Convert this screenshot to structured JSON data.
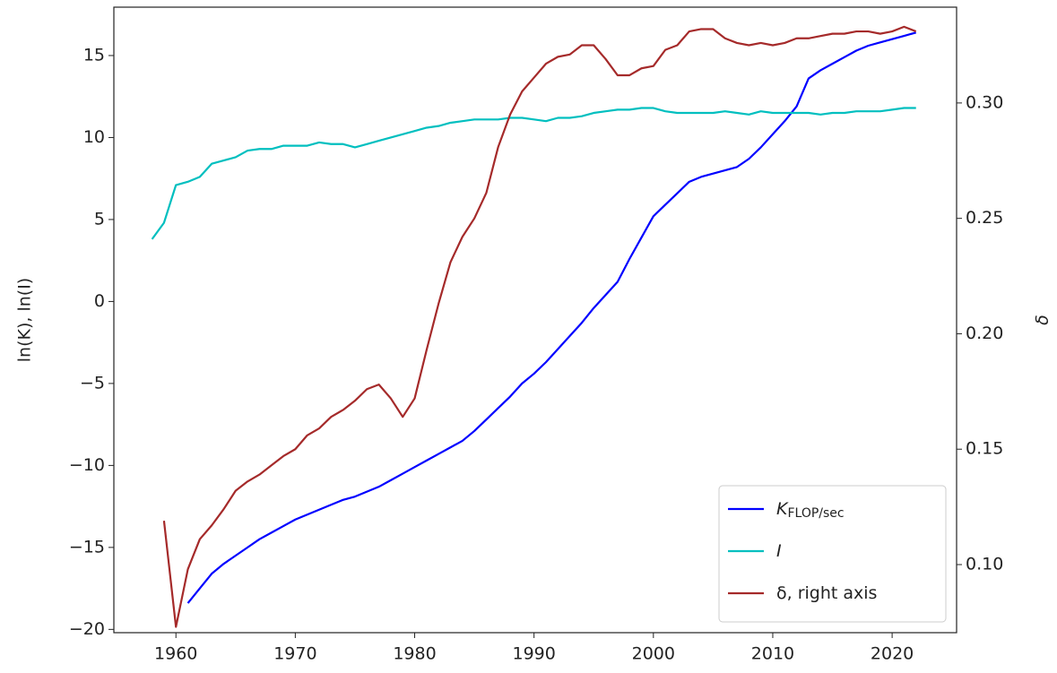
{
  "chart_data": {
    "type": "line",
    "ylabel": "ln(K), ln(I)",
    "y2label": "δ",
    "xlim": [
      1954.8,
      2025.4
    ],
    "ylim": [
      -20.2,
      17.95
    ],
    "y2lim": [
      0.0705,
      0.3415
    ],
    "xticks": [
      1960,
      1970,
      1980,
      1990,
      2000,
      2010,
      2020
    ],
    "yticks": [
      {
        "value": -20,
        "label": "−20"
      },
      {
        "value": -15,
        "label": "−15"
      },
      {
        "value": -10,
        "label": "−10"
      },
      {
        "value": -5,
        "label": "−5"
      },
      0,
      5,
      10,
      15
    ],
    "y2ticks": [
      {
        "value": 0.1,
        "label": "0.10"
      },
      {
        "value": 0.15,
        "label": "0.15"
      },
      {
        "value": 0.2,
        "label": "0.20"
      },
      {
        "value": 0.25,
        "label": "0.25"
      },
      {
        "value": 0.3,
        "label": "0.30"
      }
    ],
    "legend": "lower right",
    "series": [
      {
        "name": "K",
        "name_sub": "FLOP/sec",
        "color": "#0000ff",
        "x": [
          1961,
          1962,
          1963,
          1964,
          1965,
          1966,
          1967,
          1968,
          1969,
          1970,
          1971,
          1972,
          1973,
          1974,
          1975,
          1976,
          1977,
          1978,
          1979,
          1980,
          1981,
          1982,
          1983,
          1984,
          1985,
          1986,
          1987,
          1988,
          1989,
          1990,
          1991,
          1992,
          1993,
          1994,
          1995,
          1996,
          1997,
          1998,
          1999,
          2000,
          2001,
          2002,
          2003,
          2004,
          2005,
          2006,
          2007,
          2008,
          2009,
          2010,
          2011,
          2012,
          2013,
          2014,
          2015,
          2016,
          2017,
          2018,
          2019,
          2020,
          2021,
          2022
        ],
        "values": [
          -18.4,
          -17.5,
          -16.6,
          -16.0,
          -15.5,
          -15.0,
          -14.5,
          -14.1,
          -13.7,
          -13.3,
          -13.0,
          -12.7,
          -12.4,
          -12.1,
          -11.9,
          -11.6,
          -11.3,
          -10.9,
          -10.5,
          -10.1,
          -9.7,
          -9.3,
          -8.9,
          -8.5,
          -7.9,
          -7.2,
          -6.5,
          -5.8,
          -5.0,
          -4.4,
          -3.7,
          -2.9,
          -2.1,
          -1.3,
          -0.4,
          0.4,
          1.2,
          2.6,
          3.9,
          5.2,
          5.9,
          6.6,
          7.3,
          7.6,
          7.8,
          8.0,
          8.2,
          8.7,
          9.4,
          10.2,
          11.0,
          11.9,
          13.6,
          14.1,
          14.5,
          14.9,
          15.3,
          15.6,
          15.8,
          16.0,
          16.2,
          16.4
        ]
      },
      {
        "name": "I",
        "color": "#00bfbf",
        "x": [
          1958,
          1959,
          1960,
          1961,
          1962,
          1963,
          1964,
          1965,
          1966,
          1967,
          1968,
          1969,
          1970,
          1971,
          1972,
          1973,
          1974,
          1975,
          1976,
          1977,
          1978,
          1979,
          1980,
          1981,
          1982,
          1983,
          1984,
          1985,
          1986,
          1987,
          1988,
          1989,
          1990,
          1991,
          1992,
          1993,
          1994,
          1995,
          1996,
          1997,
          1998,
          1999,
          2000,
          2001,
          2002,
          2003,
          2004,
          2005,
          2006,
          2007,
          2008,
          2009,
          2010,
          2011,
          2012,
          2013,
          2014,
          2015,
          2016,
          2017,
          2018,
          2019,
          2020,
          2021,
          2022
        ],
        "values": [
          3.8,
          4.8,
          7.1,
          7.3,
          7.6,
          8.4,
          8.6,
          8.8,
          9.2,
          9.3,
          9.3,
          9.5,
          9.5,
          9.5,
          9.7,
          9.6,
          9.6,
          9.4,
          9.6,
          9.8,
          10.0,
          10.2,
          10.4,
          10.6,
          10.7,
          10.9,
          11.0,
          11.1,
          11.1,
          11.1,
          11.2,
          11.2,
          11.1,
          11.0,
          11.2,
          11.2,
          11.3,
          11.5,
          11.6,
          11.7,
          11.7,
          11.8,
          11.8,
          11.6,
          11.5,
          11.5,
          11.5,
          11.5,
          11.6,
          11.5,
          11.4,
          11.6,
          11.5,
          11.5,
          11.5,
          11.5,
          11.4,
          11.5,
          11.5,
          11.6,
          11.6,
          11.6,
          11.7,
          11.8,
          11.8
        ]
      },
      {
        "name": "δ, right axis",
        "color": "#a52a2a",
        "axis": "y2",
        "x": [
          1959,
          1960,
          1961,
          1962,
          1963,
          1964,
          1965,
          1966,
          1967,
          1968,
          1969,
          1970,
          1971,
          1972,
          1973,
          1974,
          1975,
          1976,
          1977,
          1978,
          1979,
          1980,
          1981,
          1982,
          1983,
          1984,
          1985,
          1986,
          1987,
          1988,
          1989,
          1990,
          1991,
          1992,
          1993,
          1994,
          1995,
          1996,
          1997,
          1998,
          1999,
          2000,
          2001,
          2002,
          2003,
          2004,
          2005,
          2006,
          2007,
          2008,
          2009,
          2010,
          2011,
          2012,
          2013,
          2014,
          2015,
          2016,
          2017,
          2018,
          2019,
          2020,
          2021,
          2022
        ],
        "values": [
          0.119,
          0.073,
          0.098,
          0.111,
          0.117,
          0.124,
          0.132,
          0.136,
          0.139,
          0.143,
          0.147,
          0.15,
          0.156,
          0.159,
          0.164,
          0.167,
          0.171,
          0.176,
          0.178,
          0.172,
          0.164,
          0.172,
          0.193,
          0.213,
          0.231,
          0.242,
          0.25,
          0.261,
          0.281,
          0.295,
          0.305,
          0.311,
          0.317,
          0.32,
          0.321,
          0.325,
          0.325,
          0.319,
          0.312,
          0.312,
          0.315,
          0.316,
          0.323,
          0.325,
          0.331,
          0.332,
          0.332,
          0.328,
          0.326,
          0.325,
          0.326,
          0.325,
          0.326,
          0.328,
          0.328,
          0.329,
          0.33,
          0.33,
          0.331,
          0.331,
          0.33,
          0.331,
          0.333,
          0.331
        ]
      }
    ]
  }
}
